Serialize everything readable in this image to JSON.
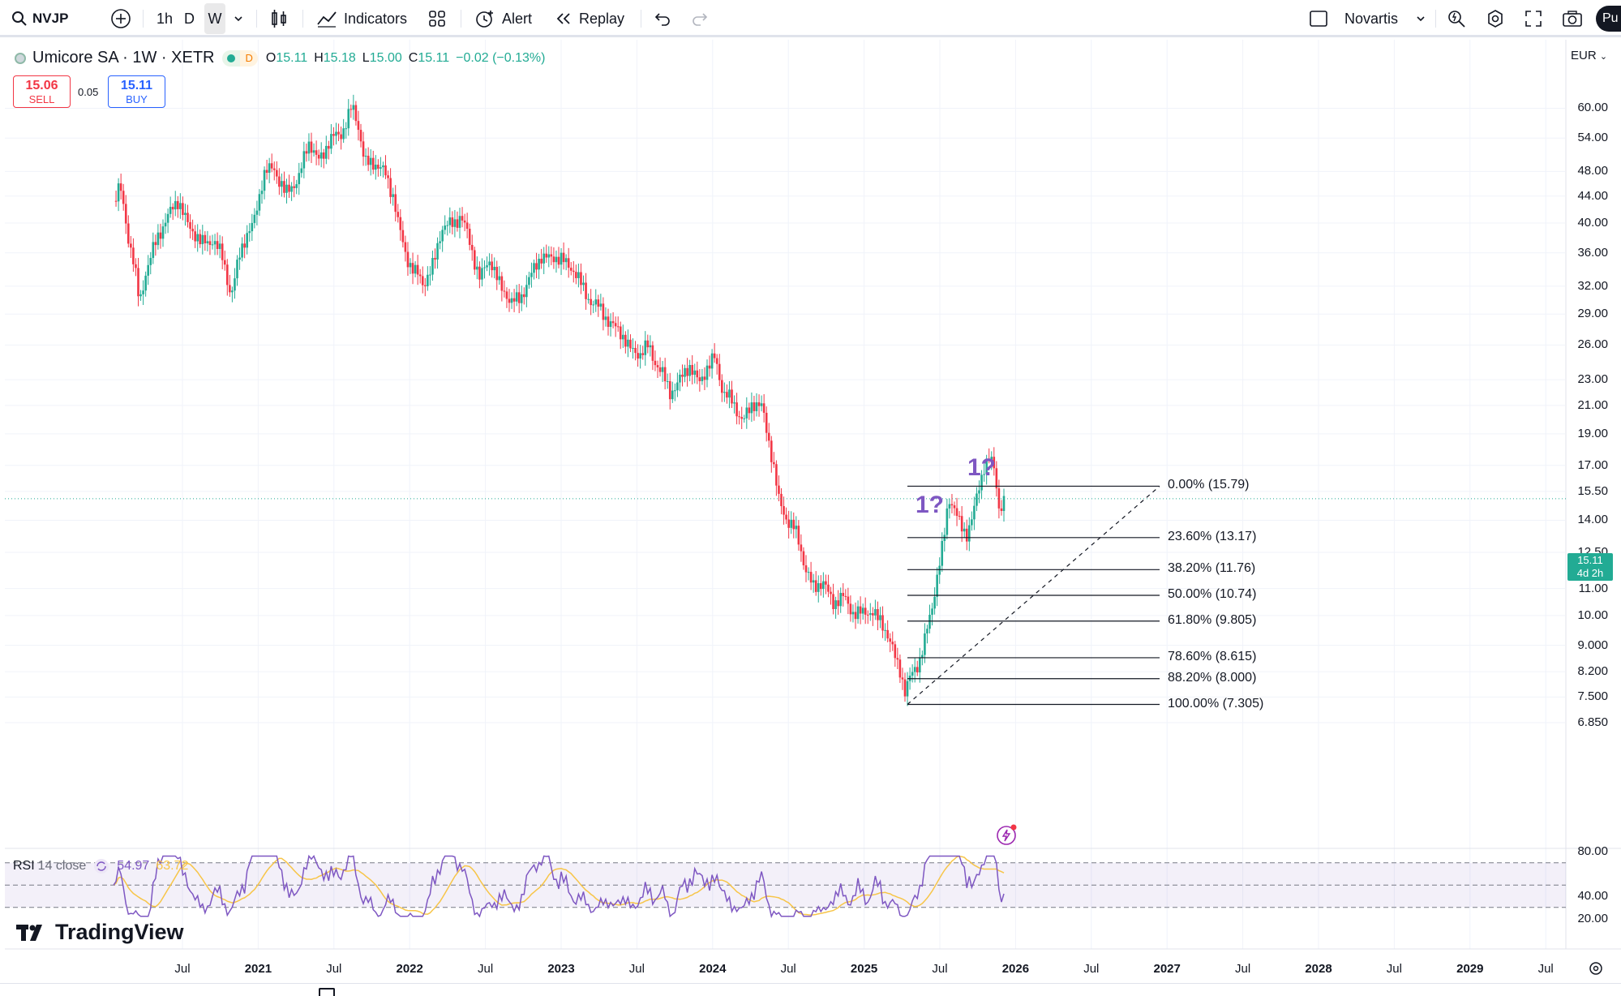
{
  "toolbar": {
    "symbol": "NVJP",
    "intervals": [
      "1h",
      "D",
      "W"
    ],
    "active_interval": "W",
    "indicators_label": "Indicators",
    "alert_label": "Alert",
    "replay_label": "Replay",
    "watchlist_label": "Novartis",
    "publish_label": "Pu"
  },
  "legend": {
    "title": "Umicore SA · 1W · XETR",
    "badge": "D",
    "open_label": "O",
    "open": "15.11",
    "high_label": "H",
    "high": "15.18",
    "low_label": "L",
    "low": "15.00",
    "close_label": "C",
    "close": "15.11",
    "change": "−0.02 (−0.13%)"
  },
  "trade": {
    "sell_price": "15.06",
    "sell_label": "SELL",
    "spread": "0.05",
    "buy_price": "15.11",
    "buy_label": "BUY"
  },
  "currency": "EUR",
  "current_price": {
    "value": "15.11",
    "countdown": "4d 2h"
  },
  "price_axis": [
    "60.00",
    "54.00",
    "48.00",
    "44.00",
    "40.00",
    "36.00",
    "32.00",
    "29.00",
    "26.00",
    "23.00",
    "21.00",
    "19.00",
    "17.00",
    "15.50",
    "14.00",
    "12.50",
    "11.00",
    "10.00",
    "9.000",
    "8.200",
    "7.500",
    "6.850"
  ],
  "time_axis": [
    {
      "label": "Jul",
      "year": false
    },
    {
      "label": "2021",
      "year": true
    },
    {
      "label": "Jul",
      "year": false
    },
    {
      "label": "2022",
      "year": true
    },
    {
      "label": "Jul",
      "year": false
    },
    {
      "label": "2023",
      "year": true
    },
    {
      "label": "Jul",
      "year": false
    },
    {
      "label": "2024",
      "year": true
    },
    {
      "label": "Jul",
      "year": false
    },
    {
      "label": "2025",
      "year": true
    },
    {
      "label": "Jul",
      "year": false
    },
    {
      "label": "2026",
      "year": true
    },
    {
      "label": "Jul",
      "year": false
    },
    {
      "label": "2027",
      "year": true
    },
    {
      "label": "Jul",
      "year": false
    },
    {
      "label": "2028",
      "year": true
    },
    {
      "label": "Jul",
      "year": false
    },
    {
      "label": "2029",
      "year": true
    },
    {
      "label": "Jul",
      "year": false
    }
  ],
  "fib_levels": [
    {
      "label": "0.00% (15.79)",
      "price": 15.79
    },
    {
      "label": "23.60% (13.17)",
      "price": 13.17
    },
    {
      "label": "38.20% (11.76)",
      "price": 11.76
    },
    {
      "label": "50.00% (10.74)",
      "price": 10.74
    },
    {
      "label": "61.80% (9.805)",
      "price": 9.805
    },
    {
      "label": "78.60% (8.615)",
      "price": 8.615
    },
    {
      "label": "88.20% (8.000)",
      "price": 8.0
    },
    {
      "label": "100.00% (7.305)",
      "price": 7.305
    }
  ],
  "annotations": [
    "1?",
    "1?"
  ],
  "rsi": {
    "title": "RSI",
    "params": "14 close",
    "value": "54.97",
    "ma_value": "63.72",
    "axis": [
      "80.00",
      "40.00",
      "20.00"
    ]
  },
  "brand": "TradingView",
  "colors": {
    "up": "#22ab94",
    "down": "#f23645",
    "rsi_line": "#7e57c2",
    "rsi_ma": "#f7c548",
    "annotation": "#7e57c2",
    "sell": "#f23645",
    "buy": "#2962ff"
  }
}
